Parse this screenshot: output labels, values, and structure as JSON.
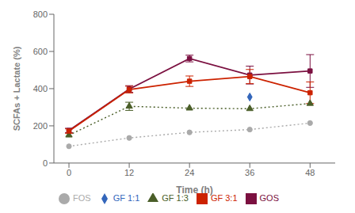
{
  "chart_data": {
    "type": "line",
    "x": [
      0,
      12,
      24,
      36,
      48
    ],
    "xlabel": "Time (h)",
    "ylabel": "SCFAs + Lactate (%)",
    "xlim": [
      -3,
      53
    ],
    "xticks": [
      0,
      12,
      24,
      36,
      48
    ],
    "ylim": [
      0,
      800
    ],
    "yticks": [
      0,
      200,
      400,
      600,
      800
    ],
    "grid": false,
    "legend": "bottom",
    "series": [
      {
        "name": "FOS",
        "color": "#aaaaaa",
        "marker": "circle",
        "line_style": "dotted",
        "values": [
          90,
          135,
          165,
          180,
          215
        ]
      },
      {
        "name": "GOS",
        "color": "#7b1040",
        "marker": "square",
        "line_style": "solid",
        "values": [
          175,
          398,
          562,
          473,
          495
        ],
        "errors": [
          12,
          18,
          18,
          48,
          88
        ]
      },
      {
        "name": "GF 1:3",
        "color": "#4a5e28",
        "marker": "triangle",
        "line_style": "dotted",
        "values": [
          150,
          305,
          295,
          292,
          320
        ],
        "errors": [
          null,
          22,
          null,
          null,
          null
        ]
      },
      {
        "name": "GF 3:1",
        "color": "#cc2200",
        "marker": "square",
        "line_style": "solid",
        "values": [
          172,
          395,
          440,
          465,
          378
        ],
        "errors": [
          12,
          18,
          28,
          38,
          58
        ]
      },
      {
        "name": "GF 1:1",
        "color": "#3366bb",
        "marker": "diamond",
        "line_style": "dotted",
        "values": [
          null,
          null,
          null,
          355,
          null
        ]
      }
    ]
  }
}
